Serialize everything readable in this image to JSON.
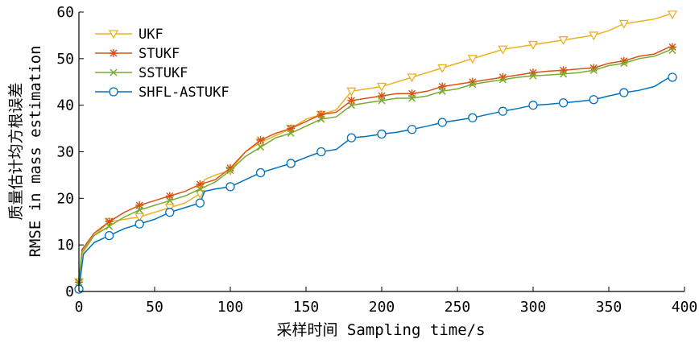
{
  "chart_data": {
    "type": "line",
    "xlabel": "采样时间 Sampling time/s",
    "ylabel_line1": "质量估计均方根误差",
    "ylabel_line2": "RMSE in mass estimation",
    "xlim": [
      0,
      400
    ],
    "ylim": [
      0,
      60
    ],
    "xticks": [
      0,
      50,
      100,
      150,
      200,
      250,
      300,
      350,
      400
    ],
    "yticks": [
      0,
      10,
      20,
      30,
      40,
      50,
      60
    ],
    "grid": false,
    "legend_position": "top-left",
    "series": [
      {
        "name": "UKF",
        "color": "#EDB120",
        "marker": "triangle-down",
        "points": [
          [
            0,
            2
          ],
          [
            2,
            8
          ],
          [
            10,
            12
          ],
          [
            20,
            15
          ],
          [
            30,
            15.5
          ],
          [
            40,
            16
          ],
          [
            50,
            17
          ],
          [
            60,
            18
          ],
          [
            70,
            19
          ],
          [
            80,
            21
          ],
          [
            83,
            24
          ],
          [
            90,
            25
          ],
          [
            100,
            26
          ],
          [
            110,
            30
          ],
          [
            120,
            32
          ],
          [
            130,
            33.5
          ],
          [
            140,
            35
          ],
          [
            150,
            37
          ],
          [
            160,
            38
          ],
          [
            170,
            39
          ],
          [
            180,
            43
          ],
          [
            190,
            43.5
          ],
          [
            200,
            44
          ],
          [
            210,
            45
          ],
          [
            220,
            46
          ],
          [
            230,
            47
          ],
          [
            240,
            48
          ],
          [
            250,
            49
          ],
          [
            260,
            50
          ],
          [
            270,
            51
          ],
          [
            280,
            52
          ],
          [
            290,
            52.5
          ],
          [
            300,
            53
          ],
          [
            310,
            53.5
          ],
          [
            320,
            54
          ],
          [
            330,
            54.5
          ],
          [
            340,
            55
          ],
          [
            350,
            56
          ],
          [
            360,
            57.5
          ],
          [
            370,
            58
          ],
          [
            380,
            58.5
          ],
          [
            390,
            59.5
          ]
        ],
        "marker_x": [
          0,
          20,
          40,
          60,
          80,
          100,
          120,
          140,
          160,
          180,
          200,
          220,
          240,
          260,
          280,
          300,
          320,
          340,
          360,
          392
        ]
      },
      {
        "name": "STUKF",
        "color": "#D95319",
        "marker": "asterisk",
        "points": [
          [
            0,
            2
          ],
          [
            2,
            9
          ],
          [
            10,
            12.5
          ],
          [
            20,
            15
          ],
          [
            30,
            17
          ],
          [
            40,
            18.5
          ],
          [
            50,
            19.5
          ],
          [
            60,
            20.5
          ],
          [
            70,
            21.5
          ],
          [
            80,
            23
          ],
          [
            90,
            24
          ],
          [
            100,
            26.5
          ],
          [
            110,
            30
          ],
          [
            120,
            32.5
          ],
          [
            130,
            34
          ],
          [
            140,
            35
          ],
          [
            150,
            36.5
          ],
          [
            160,
            38
          ],
          [
            170,
            38.5
          ],
          [
            180,
            41
          ],
          [
            190,
            41.5
          ],
          [
            200,
            42
          ],
          [
            210,
            42.5
          ],
          [
            220,
            42.5
          ],
          [
            230,
            43
          ],
          [
            240,
            44
          ],
          [
            250,
            44.5
          ],
          [
            260,
            45
          ],
          [
            270,
            45.5
          ],
          [
            280,
            46
          ],
          [
            290,
            46.5
          ],
          [
            300,
            47
          ],
          [
            310,
            47.3
          ],
          [
            320,
            47.5
          ],
          [
            330,
            47.8
          ],
          [
            340,
            48
          ],
          [
            350,
            49
          ],
          [
            360,
            49.5
          ],
          [
            370,
            50.5
          ],
          [
            380,
            51
          ],
          [
            390,
            52.5
          ]
        ],
        "marker_x": [
          0,
          20,
          40,
          60,
          80,
          100,
          120,
          140,
          160,
          180,
          200,
          220,
          240,
          260,
          280,
          300,
          320,
          340,
          360,
          392
        ]
      },
      {
        "name": "SSTUKF",
        "color": "#77AC30",
        "marker": "cross",
        "points": [
          [
            0,
            2
          ],
          [
            2,
            8.5
          ],
          [
            10,
            12
          ],
          [
            20,
            14
          ],
          [
            30,
            16
          ],
          [
            40,
            17.5
          ],
          [
            50,
            18.5
          ],
          [
            60,
            19.5
          ],
          [
            70,
            20.5
          ],
          [
            80,
            22
          ],
          [
            90,
            23.5
          ],
          [
            100,
            26
          ],
          [
            110,
            29
          ],
          [
            120,
            31
          ],
          [
            130,
            33
          ],
          [
            140,
            34
          ],
          [
            150,
            35.5
          ],
          [
            160,
            37
          ],
          [
            170,
            37.5
          ],
          [
            180,
            40
          ],
          [
            190,
            40.5
          ],
          [
            200,
            41
          ],
          [
            210,
            41.5
          ],
          [
            220,
            41.5
          ],
          [
            230,
            42
          ],
          [
            240,
            43
          ],
          [
            250,
            43.5
          ],
          [
            260,
            44.5
          ],
          [
            270,
            45
          ],
          [
            280,
            45.5
          ],
          [
            290,
            46
          ],
          [
            300,
            46.3
          ],
          [
            310,
            46.5
          ],
          [
            320,
            46.7
          ],
          [
            330,
            47
          ],
          [
            340,
            47.5
          ],
          [
            350,
            48.5
          ],
          [
            360,
            49
          ],
          [
            370,
            50
          ],
          [
            380,
            50.5
          ],
          [
            390,
            51.8
          ]
        ],
        "marker_x": [
          0,
          20,
          40,
          60,
          80,
          100,
          120,
          140,
          160,
          180,
          200,
          220,
          240,
          260,
          280,
          300,
          320,
          340,
          360,
          392
        ]
      },
      {
        "name": "SHFL-ASTUKF",
        "color": "#0072BD",
        "marker": "circle",
        "points": [
          [
            0,
            0.5
          ],
          [
            3,
            8
          ],
          [
            10,
            10.5
          ],
          [
            20,
            12
          ],
          [
            30,
            13.5
          ],
          [
            40,
            14.5
          ],
          [
            50,
            15.5
          ],
          [
            60,
            17
          ],
          [
            70,
            18
          ],
          [
            80,
            19
          ],
          [
            83,
            21.5
          ],
          [
            90,
            22
          ],
          [
            100,
            22.5
          ],
          [
            110,
            24
          ],
          [
            120,
            25.5
          ],
          [
            130,
            26.5
          ],
          [
            140,
            27.5
          ],
          [
            150,
            28.8
          ],
          [
            160,
            30
          ],
          [
            170,
            30.5
          ],
          [
            180,
            33
          ],
          [
            190,
            33.3
          ],
          [
            200,
            33.8
          ],
          [
            210,
            34.2
          ],
          [
            220,
            34.8
          ],
          [
            230,
            35.5
          ],
          [
            240,
            36.3
          ],
          [
            250,
            36.8
          ],
          [
            260,
            37.3
          ],
          [
            270,
            38
          ],
          [
            280,
            38.7
          ],
          [
            290,
            39.3
          ],
          [
            300,
            40
          ],
          [
            310,
            40.2
          ],
          [
            320,
            40.5
          ],
          [
            330,
            40.8
          ],
          [
            340,
            41.2
          ],
          [
            350,
            42
          ],
          [
            360,
            42.7
          ],
          [
            370,
            43.2
          ],
          [
            380,
            44
          ],
          [
            390,
            46
          ]
        ],
        "marker_x": [
          0,
          20,
          40,
          60,
          80,
          100,
          120,
          140,
          160,
          180,
          200,
          220,
          240,
          260,
          280,
          300,
          320,
          340,
          360,
          392
        ]
      }
    ]
  }
}
